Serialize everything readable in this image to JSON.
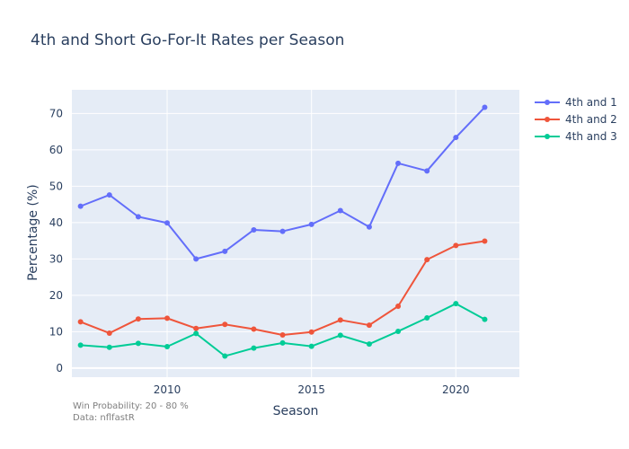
{
  "chart_data": {
    "type": "line",
    "title": "4th and Short Go-For-It Rates per Season",
    "xlabel": "Season",
    "ylabel": "Percentage (%)",
    "x": [
      2007,
      2008,
      2009,
      2010,
      2011,
      2012,
      2013,
      2014,
      2015,
      2016,
      2017,
      2018,
      2019,
      2020,
      2021
    ],
    "xlim": [
      2006.7,
      2022.2
    ],
    "ylim": [
      -2.5,
      76.5
    ],
    "xticks": [
      2010,
      2015,
      2020
    ],
    "yticks": [
      0,
      10,
      20,
      30,
      40,
      50,
      60,
      70
    ],
    "grid": true,
    "legend_position": "top-right",
    "series": [
      {
        "name": "4th and 1",
        "color": "#636efa",
        "values": [
          44.5,
          47.6,
          41.6,
          39.9,
          30.0,
          32.1,
          38.0,
          37.6,
          39.5,
          43.3,
          38.8,
          56.3,
          54.2,
          63.4,
          71.7
        ]
      },
      {
        "name": "4th and 2",
        "color": "#ef553b",
        "values": [
          12.7,
          9.6,
          13.5,
          13.7,
          10.9,
          12.0,
          10.7,
          9.1,
          9.9,
          13.2,
          11.8,
          17.0,
          29.8,
          33.7,
          34.9
        ]
      },
      {
        "name": "4th and 3",
        "color": "#00cc96",
        "values": [
          6.3,
          5.7,
          6.8,
          5.9,
          9.5,
          3.3,
          5.5,
          6.9,
          6.0,
          9.0,
          6.6,
          10.1,
          13.8,
          17.7,
          13.4
        ]
      }
    ],
    "annotation_lines": [
      "Win Probability: 20 - 80 %",
      "Data: nflfastR"
    ]
  }
}
